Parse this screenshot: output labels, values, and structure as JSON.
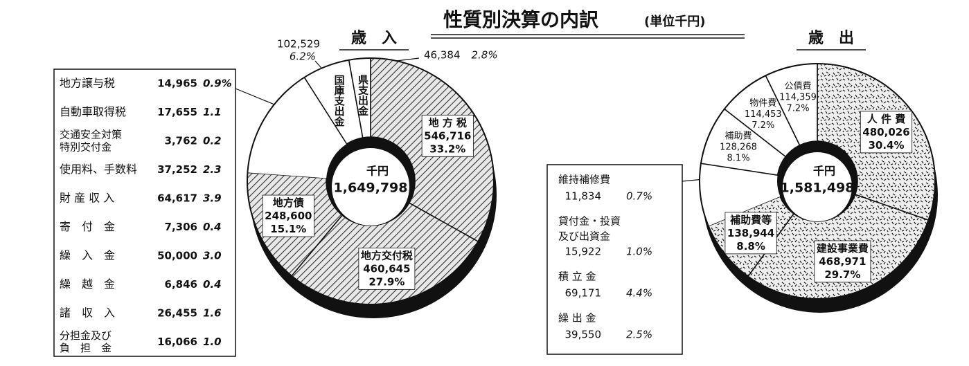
{
  "title": "性質別決算の内訳",
  "unit": "(単位千円)",
  "chart_data": [
    {
      "type": "donut",
      "title": "歳　入",
      "center_unit": "千円",
      "total": 1649798,
      "total_label": "1,649,798",
      "categories": [
        "地 方 税",
        "地方交付税",
        "地方債",
        "地方譲与税",
        "自動車取得税",
        [
          "交通安全対策",
          "特別交付金"
        ],
        "使用料、手数料",
        "財 産 収 入",
        "寄　付　金",
        "繰　入　金",
        "繰　越　金",
        "諸　収　入",
        [
          "分担金及び",
          "負　担　金"
        ],
        "国庫支出金",
        "県支出金"
      ],
      "values": [
        546716,
        460645,
        248600,
        14965,
        17655,
        3762,
        37252,
        64617,
        7306,
        50000,
        6846,
        26455,
        16066,
        102529,
        46384
      ],
      "value_labels": [
        "546,716",
        "460,645",
        "248,600",
        "14,965",
        "17,655",
        "3,762",
        "37,252",
        "64,617",
        "7,306",
        "50,000",
        "6,846",
        "26,455",
        "16,066",
        "102,529",
        "46,384"
      ],
      "percent_labels": [
        "33.2%",
        "27.9%",
        "15.1%",
        "0.9%",
        "1.1",
        "0.2",
        "2.3",
        "3.9",
        "0.4",
        "3.0",
        "0.4",
        "1.6",
        "1.0",
        "6.2%",
        "2.8%"
      ],
      "fills": [
        "hatch",
        "hatch",
        "hatch",
        "white",
        "white",
        "white",
        "white",
        "white",
        "white",
        "white",
        "white",
        "white",
        "white",
        "white",
        "white"
      ]
    },
    {
      "type": "donut",
      "title": "歳　出",
      "center_unit": "千円",
      "total": 1581498,
      "total_label": "1,581,498",
      "categories": [
        "人 件 費",
        "建設事業費",
        "補助費等",
        "維持補修費",
        [
          "貸付金・投資",
          "及び出資金"
        ],
        "積 立 金",
        "繰 出 金",
        "補助費",
        "物件費",
        "公債費"
      ],
      "values": [
        480026,
        468971,
        138944,
        11834,
        15922,
        69171,
        39550,
        128268,
        114453,
        114359
      ],
      "value_labels": [
        "480,026",
        "468,971",
        "138,944",
        "11,834",
        "15,922",
        "69,171",
        "39,550",
        "128,268",
        "114,453",
        "114,359"
      ],
      "percent_labels": [
        "30.4%",
        "29.7%",
        "8.8%",
        "0.7%",
        "1.0%",
        "4.4%",
        "2.5%",
        "8.1%",
        "7.2%",
        "7.2%"
      ],
      "fills": [
        "speckle",
        "speckle",
        "speckle",
        "white",
        "white",
        "white",
        "white",
        "white",
        "white",
        "white"
      ]
    }
  ]
}
